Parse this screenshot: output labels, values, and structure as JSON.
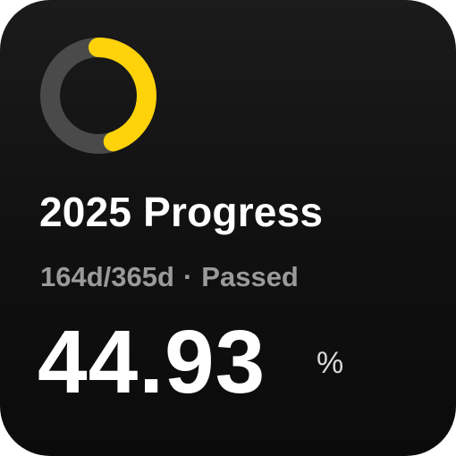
{
  "widget": {
    "title": "2025 Progress",
    "days_elapsed": "164d",
    "days_total": "365d",
    "separator": "·",
    "status": "Passed",
    "percent_value": "44.93",
    "percent_unit": "%",
    "progress_fraction": 0.4493
  },
  "colors": {
    "accent": "#FFD20A",
    "track": "#4a4a4a",
    "background": "#111111",
    "subtitle": "#9a9a9a"
  },
  "icons": {
    "progress": "progress-ring-icon"
  }
}
